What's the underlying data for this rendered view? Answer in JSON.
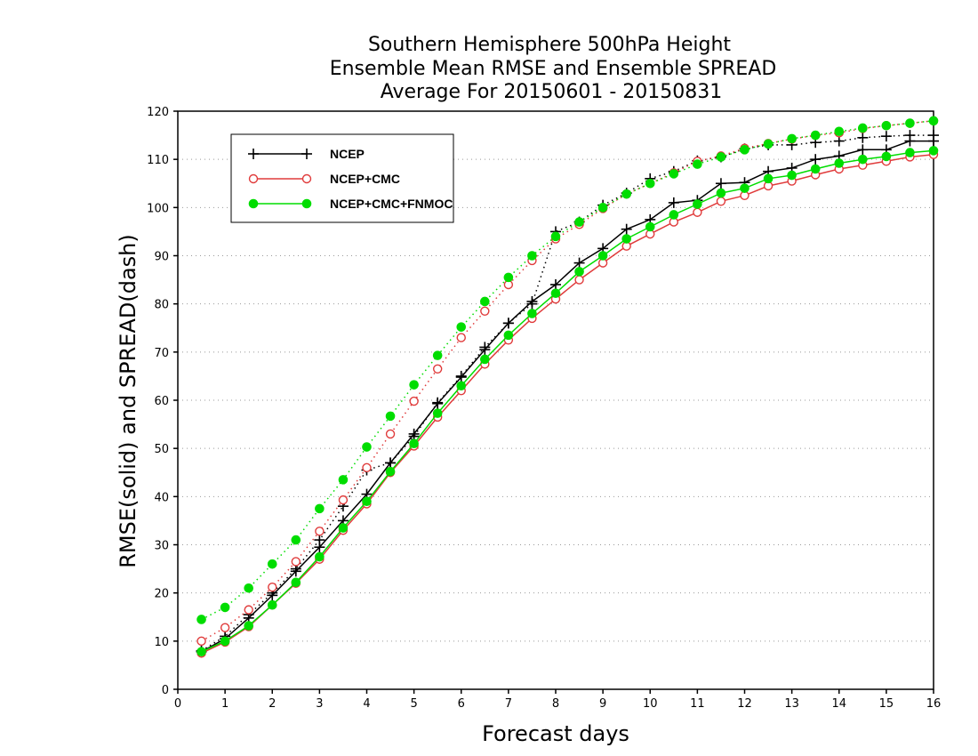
{
  "chart_data": {
    "type": "line",
    "title": [
      "Southern Hemisphere 500hPa Height",
      "Ensemble Mean RMSE and Ensemble SPREAD",
      "Average For 20150601 - 20150831"
    ],
    "xlabel": "Forecast days",
    "ylabel": "RMSE(solid) and SPREAD(dash)",
    "xlim": [
      0,
      16
    ],
    "ylim": [
      0,
      120
    ],
    "xticks": [
      0,
      1,
      2,
      3,
      4,
      5,
      6,
      7,
      8,
      9,
      10,
      11,
      12,
      13,
      14,
      15,
      16
    ],
    "yticks": [
      0,
      10,
      20,
      30,
      40,
      50,
      60,
      70,
      80,
      90,
      100,
      110,
      120
    ],
    "grid": "horizontal dotted",
    "legend_position": "top-left",
    "x": [
      0.5,
      1,
      1.5,
      2,
      2.5,
      3,
      3.5,
      4,
      4.5,
      5,
      5.5,
      6,
      6.5,
      7,
      7.5,
      8,
      8.5,
      9,
      9.5,
      10,
      10.5,
      11,
      11.5,
      12,
      12.5,
      13,
      13.5,
      14,
      14.5,
      15,
      15.5,
      16
    ],
    "series": [
      {
        "name": "NCEP",
        "style": "solid",
        "metric": "RMSE",
        "color": "#000000",
        "marker": "plus",
        "values": [
          7.8,
          10.5,
          14.8,
          19.5,
          24.5,
          29.5,
          35,
          40.5,
          47,
          53,
          59.3,
          64.8,
          70.5,
          76,
          80.5,
          84,
          88.5,
          91.5,
          95.5,
          97.5,
          101,
          101.5,
          105,
          105.2,
          107.5,
          108.2,
          110,
          110.7,
          112,
          112,
          113.8,
          113.8
        ]
      },
      {
        "name": "NCEP",
        "style": "dash",
        "metric": "SPREAD",
        "color": "#000000",
        "marker": "plus",
        "values": [
          8,
          11,
          15.5,
          20,
          25,
          31,
          38,
          45.5,
          47,
          52.5,
          59.5,
          65,
          71,
          76,
          80,
          95,
          97,
          100.5,
          103,
          106,
          107.5,
          109.7,
          110.5,
          112.2,
          113,
          113,
          113.5,
          113.8,
          114.5,
          114.8,
          115,
          115
        ]
      },
      {
        "name": "NCEP+CMC",
        "style": "solid",
        "metric": "RMSE",
        "color": "#e03b3b",
        "marker": "circle-open",
        "values": [
          7.5,
          9.8,
          13,
          17.5,
          22,
          27,
          33,
          38.5,
          45,
          50.5,
          56.5,
          62,
          67.5,
          72.5,
          77,
          81,
          85,
          88.5,
          92,
          94.5,
          97,
          99,
          101.3,
          102.5,
          104.5,
          105.5,
          106.8,
          108,
          108.8,
          109.6,
          110.5,
          111
        ]
      },
      {
        "name": "NCEP+CMC",
        "style": "dash",
        "metric": "SPREAD",
        "color": "#e03b3b",
        "marker": "circle-open",
        "values": [
          10,
          12.8,
          16.5,
          21.2,
          26.5,
          32.8,
          39.3,
          46,
          53,
          59.8,
          66.5,
          73,
          78.5,
          84,
          89,
          93.5,
          96.5,
          99.8,
          102.8,
          105,
          107.2,
          109.6,
          110.7,
          112.3,
          113.3,
          114.2,
          115,
          115.5,
          116.4,
          117,
          117.5,
          118
        ]
      },
      {
        "name": "NCEP+CMC+FNMOC",
        "style": "solid",
        "metric": "RMSE",
        "color": "#00dd00",
        "marker": "circle-filled",
        "values": [
          7.8,
          10,
          13.2,
          17.5,
          22.2,
          27.5,
          33.5,
          39,
          45.2,
          51,
          57.3,
          63,
          68.5,
          73.5,
          78,
          82.2,
          86.7,
          90,
          93.5,
          96,
          98.5,
          100.7,
          103,
          104,
          106,
          106.7,
          108,
          109.2,
          110,
          110.6,
          111.4,
          111.8
        ]
      },
      {
        "name": "NCEP+CMC+FNMOC",
        "style": "dash",
        "metric": "SPREAD",
        "color": "#00dd00",
        "marker": "circle-filled",
        "values": [
          14.5,
          17,
          21,
          26,
          31,
          37.5,
          43.5,
          50.3,
          56.7,
          63.2,
          69.3,
          75.2,
          80.5,
          85.5,
          90,
          94,
          97,
          100,
          102.8,
          105,
          107,
          109,
          110.5,
          112,
          113.2,
          114.3,
          115,
          115.8,
          116.5,
          117,
          117.5,
          118
        ]
      }
    ],
    "legend": [
      "NCEP",
      "NCEP+CMC",
      "NCEP+CMC+FNMOC"
    ]
  }
}
